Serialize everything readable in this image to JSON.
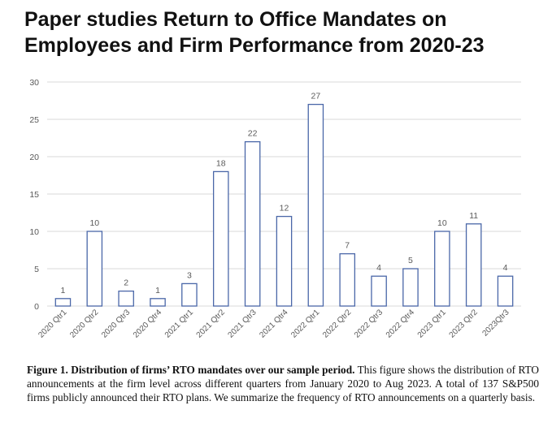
{
  "header": {
    "title": "Paper studies Return to Office Mandates on Employees and Firm Performance from 2020-23"
  },
  "caption": {
    "label": "Figure 1. Distribution of firms’ RTO mandates over our sample period.",
    "text": " This figure shows the distribution of RTO announcements at the firm level across different quarters from January 2020 to Aug 2023. A total of 137 S&P500 firms publicly announced their RTO plans. We summarize the frequency of RTO announcements on a quarterly basis."
  },
  "chart_data": {
    "type": "bar",
    "title": "Paper studies Return to Office Mandates on Employees and Firm Performance from 2020-23",
    "categories": [
      "2020 Qtr1",
      "2020 Qtr2",
      "2020 Qtr3",
      "2020 Qtr4",
      "2021 Qtr1",
      "2021 Qtr2",
      "2021 Qtr3",
      "2021 Qtr4",
      "2022 Qtr1",
      "2022 Qtr2",
      "2022 Qtr3",
      "2022 Qtr4",
      "2023 Qtr1",
      "2023 Qtr2",
      "2023Qtr3"
    ],
    "values": [
      1,
      10,
      2,
      1,
      3,
      18,
      22,
      12,
      27,
      7,
      4,
      5,
      10,
      11,
      4
    ],
    "yticks": [
      0,
      5,
      10,
      15,
      20,
      25,
      30
    ],
    "ylim": [
      0,
      30
    ],
    "grid": true,
    "data_labels": true,
    "colors": {
      "bar_stroke": "#4a67a8",
      "bar_fill": "#ffffff",
      "grid": "#d9d9d9",
      "text": "#595959"
    }
  }
}
